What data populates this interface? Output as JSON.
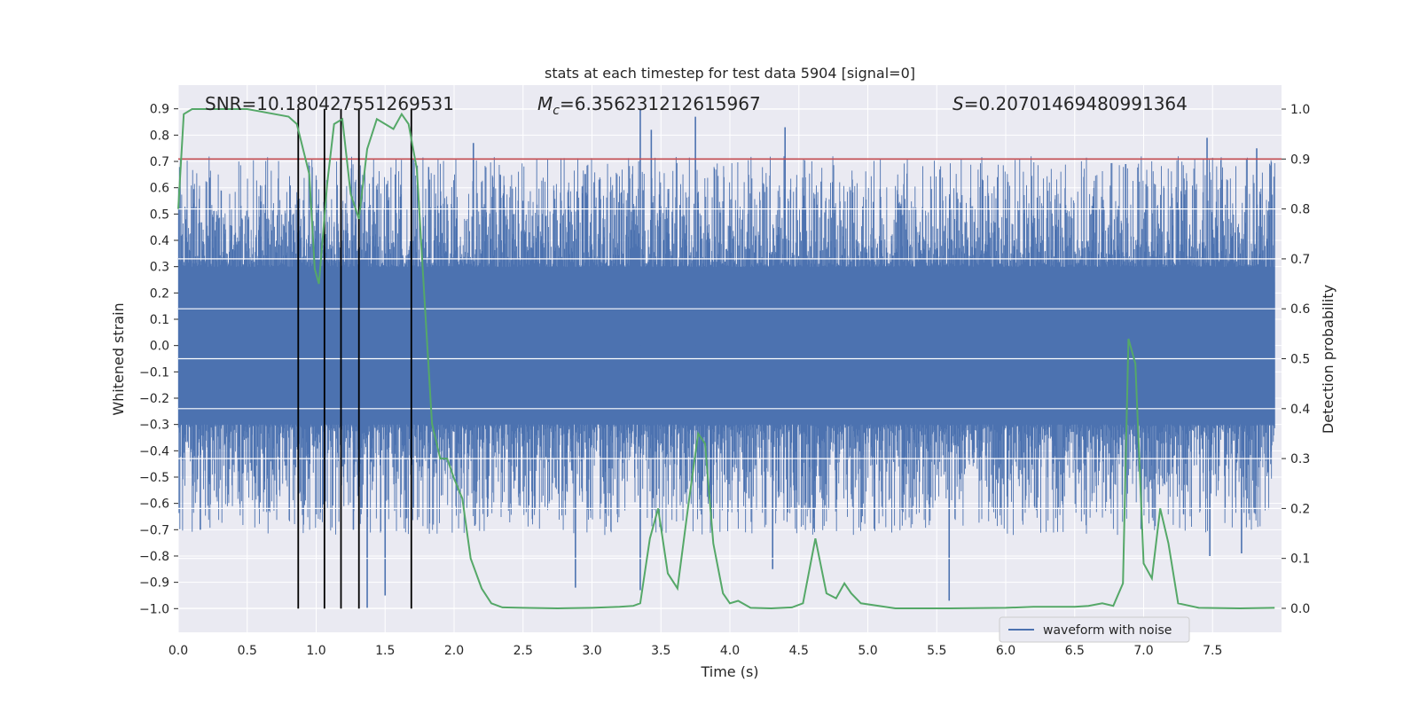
{
  "chart_data": {
    "type": "line",
    "title": "stats at each timestep for test data 5904 [signal=0]",
    "xlabel": "Time (s)",
    "ylabel_left": "Whitened strain",
    "ylabel_right": "Detection probability",
    "xlim": [
      0.0,
      8.0
    ],
    "ylim_left": [
      -1.09,
      0.99
    ],
    "ylim_right": [
      -0.048,
      1.048
    ],
    "x_ticks": [
      "0.0",
      "0.5",
      "1.0",
      "1.5",
      "2.0",
      "2.5",
      "3.0",
      "3.5",
      "4.0",
      "4.5",
      "5.0",
      "5.5",
      "6.0",
      "6.5",
      "7.0",
      "7.5"
    ],
    "y_left_ticks": [
      "0.9",
      "0.8",
      "0.7",
      "0.6",
      "0.5",
      "0.4",
      "0.3",
      "0.2",
      "0.1",
      "0.0",
      "−0.1",
      "−0.2",
      "−0.3",
      "−0.4",
      "−0.5",
      "−0.6",
      "−0.7",
      "−0.8",
      "−0.9",
      "−1.0"
    ],
    "y_right_ticks": [
      "1.0",
      "0.9",
      "0.8",
      "0.7",
      "0.6",
      "0.5",
      "0.4",
      "0.3",
      "0.2",
      "0.1",
      "0.0"
    ],
    "stats": {
      "snr_label": "SNR=10.180427551269531",
      "mc_symbol": "M",
      "mc_sub": "c",
      "mc_value": "=6.356231212615967",
      "s_symbol": "S",
      "s_value": "=0.20701469480991364"
    },
    "threshold": {
      "value": 0.9,
      "color": "#c44e52"
    },
    "event_markers_s": [
      0.87,
      1.06,
      1.18,
      1.31,
      1.69
    ],
    "legend": {
      "label": "waveform with noise",
      "position": "lower-right"
    },
    "series": [
      {
        "name": "waveform with noise",
        "axis": "left",
        "color": "#4c72b0",
        "core_amplitude": 0.3,
        "typical_peak": 0.6,
        "tall_spikes": [
          {
            "t": 3.35,
            "v": 0.9
          },
          {
            "t": 3.75,
            "v": 0.87
          },
          {
            "t": 4.4,
            "v": 0.83
          },
          {
            "t": 3.43,
            "v": 0.82
          },
          {
            "t": 6.87,
            "v": 0.69
          },
          {
            "t": 7.46,
            "v": 0.79
          },
          {
            "t": 7.82,
            "v": 0.75
          },
          {
            "t": 2.14,
            "v": 0.77
          }
        ],
        "deep_spikes": [
          {
            "t": 1.37,
            "v": -1.0
          },
          {
            "t": 1.5,
            "v": -0.95
          },
          {
            "t": 2.88,
            "v": -0.92
          },
          {
            "t": 3.35,
            "v": -0.93
          },
          {
            "t": 5.59,
            "v": -0.97
          },
          {
            "t": 7.48,
            "v": -0.8
          },
          {
            "t": 7.71,
            "v": -0.79
          },
          {
            "t": 4.31,
            "v": -0.85
          },
          {
            "t": 0.16,
            "v": -0.7
          },
          {
            "t": 1.27,
            "v": -0.7
          }
        ]
      },
      {
        "name": "detection probability",
        "axis": "right",
        "color": "#55a868",
        "x": [
          0.0,
          0.04,
          0.1,
          0.2,
          0.3,
          0.4,
          0.5,
          0.6,
          0.7,
          0.8,
          0.86,
          0.95,
          0.99,
          1.02,
          1.08,
          1.13,
          1.19,
          1.25,
          1.31,
          1.37,
          1.44,
          1.5,
          1.56,
          1.62,
          1.67,
          1.73,
          1.79,
          1.84,
          1.9,
          1.95,
          2.0,
          2.06,
          2.12,
          2.2,
          2.27,
          2.35,
          2.5,
          2.75,
          3.0,
          3.2,
          3.3,
          3.35,
          3.42,
          3.48,
          3.55,
          3.62,
          3.7,
          3.77,
          3.82,
          3.88,
          3.95,
          4.0,
          4.06,
          4.15,
          4.3,
          4.45,
          4.53,
          4.62,
          4.7,
          4.77,
          4.83,
          4.88,
          4.95,
          5.2,
          5.6,
          6.0,
          6.2,
          6.5,
          6.6,
          6.7,
          6.78,
          6.85,
          6.89,
          6.94,
          7.0,
          7.06,
          7.12,
          7.18,
          7.25,
          7.4,
          7.7,
          7.95
        ],
        "values": [
          0.8,
          0.99,
          1.0,
          1.0,
          1.0,
          1.0,
          1.0,
          0.995,
          0.99,
          0.985,
          0.97,
          0.87,
          0.68,
          0.65,
          0.85,
          0.97,
          0.98,
          0.83,
          0.78,
          0.92,
          0.98,
          0.97,
          0.96,
          0.99,
          0.97,
          0.88,
          0.6,
          0.37,
          0.3,
          0.3,
          0.26,
          0.22,
          0.1,
          0.04,
          0.01,
          0.002,
          0.001,
          0.0,
          0.001,
          0.003,
          0.005,
          0.01,
          0.14,
          0.2,
          0.07,
          0.04,
          0.21,
          0.35,
          0.33,
          0.13,
          0.03,
          0.01,
          0.015,
          0.001,
          0.0,
          0.002,
          0.01,
          0.14,
          0.03,
          0.02,
          0.05,
          0.03,
          0.01,
          0.0,
          0.0,
          0.001,
          0.003,
          0.003,
          0.005,
          0.01,
          0.005,
          0.05,
          0.54,
          0.49,
          0.09,
          0.06,
          0.2,
          0.13,
          0.01,
          0.001,
          0.0,
          0.001
        ]
      }
    ]
  }
}
